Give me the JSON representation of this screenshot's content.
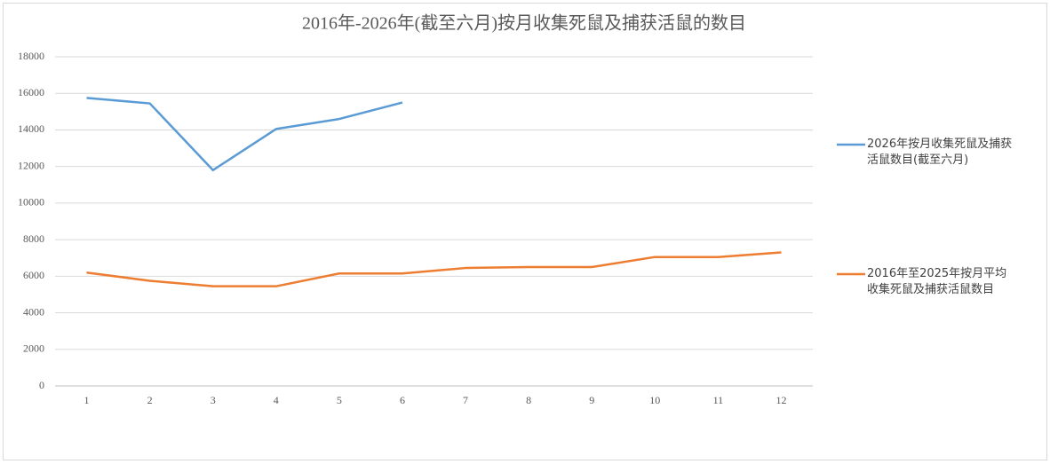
{
  "chart_data": {
    "type": "line",
    "title": "2016年-2026年(截至六月)按月收集死鼠及捕获活鼠的数目",
    "categories": [
      "1",
      "2",
      "3",
      "4",
      "5",
      "6",
      "7",
      "8",
      "9",
      "10",
      "11",
      "12"
    ],
    "series": [
      {
        "name": "2026年按月收集死鼠及捕获活鼠数目(截至六月)",
        "color": "#5b9bd5",
        "values": [
          15750,
          15450,
          11800,
          14050,
          14600,
          15500,
          null,
          null,
          null,
          null,
          null,
          null
        ]
      },
      {
        "name": "2016年至2025年按月平均收集死鼠及捕获活鼠数目",
        "color": "#ed7d31",
        "values": [
          6200,
          5750,
          5450,
          5450,
          6150,
          6150,
          6450,
          6500,
          6500,
          7050,
          7050,
          7300
        ]
      }
    ],
    "ylim": [
      0,
      18000
    ],
    "yticks": [
      0,
      2000,
      4000,
      6000,
      8000,
      10000,
      12000,
      14000,
      16000,
      18000
    ],
    "grid": true,
    "legend": "right"
  }
}
